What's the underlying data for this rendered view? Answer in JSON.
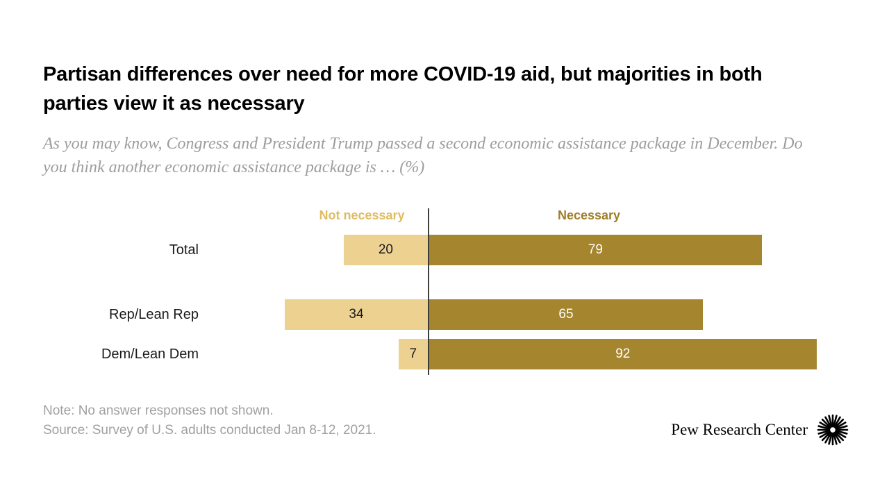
{
  "title": "Partisan differences over need for more COVID-19 aid, but majorities in both parties view it as necessary",
  "subtitle": "As you may know, Congress and President Trump passed a second economic assistance package in December. Do you think another economic assistance package is … (%)",
  "chart_data": {
    "type": "bar",
    "orientation": "horizontal-diverging",
    "unit": "%",
    "categories": [
      "Total",
      "Rep/Lean Rep",
      "Dem/Lean Dem"
    ],
    "series": [
      {
        "name": "Not necessary",
        "values": [
          20,
          34,
          7
        ],
        "color": "#ECD191",
        "label_color": "#DFBC63"
      },
      {
        "name": "Necessary",
        "values": [
          79,
          65,
          92
        ],
        "color": "#A5862F",
        "label_color": "#9F7E28"
      }
    ],
    "legend_position": "top",
    "axis": "hidden",
    "xlim": [
      -40,
      100
    ]
  },
  "note": "Note: No answer responses not shown.",
  "source": "Source: Survey of U.S. adults conducted Jan 8-12, 2021.",
  "branding": "Pew Research Center"
}
